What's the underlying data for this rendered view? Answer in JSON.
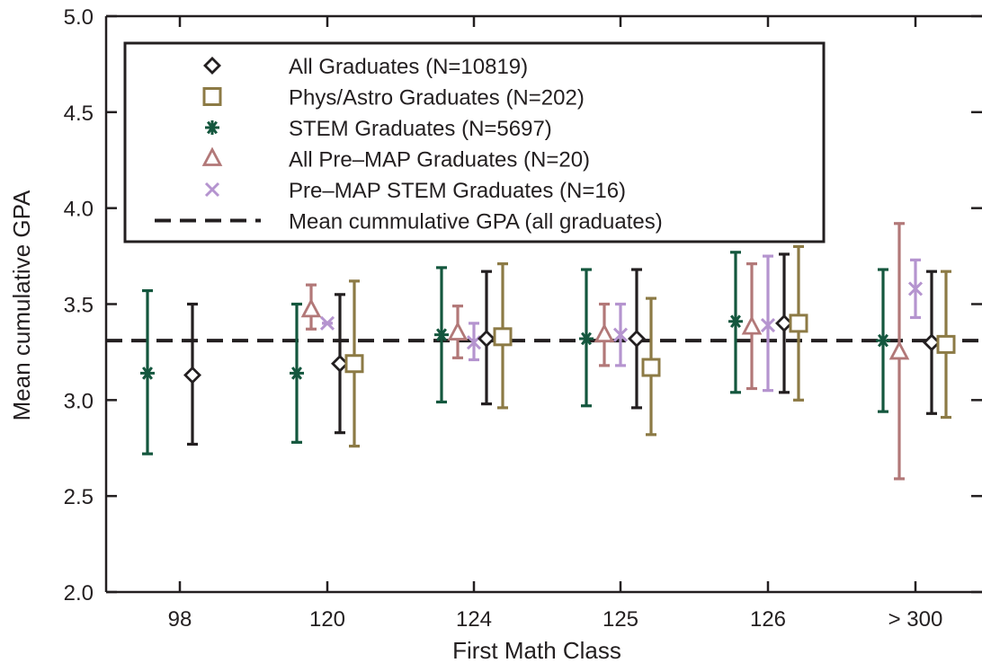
{
  "chart_data": {
    "type": "scatter",
    "title": "",
    "xlabel": "First Math Class",
    "ylabel": "Mean cumulative GPA",
    "categories": [
      "98",
      "120",
      "124",
      "125",
      "126",
      "> 300"
    ],
    "ylim": [
      2.0,
      5.0
    ],
    "yticks": [
      "2.0",
      "2.5",
      "3.0",
      "3.5",
      "4.0",
      "4.5",
      "5.0"
    ],
    "grid": false,
    "legend_position": "top-left",
    "reference_line": {
      "label": "Mean cummulative GPA (all graduates)",
      "value": 3.31,
      "style": "dashed",
      "color": "#231f20"
    },
    "series": [
      {
        "name": "All Graduates (N=10819)",
        "marker": "diamond",
        "color": "#231f20",
        "values": [
          3.13,
          3.19,
          3.32,
          3.32,
          3.4,
          3.3
        ],
        "lower": [
          2.77,
          2.83,
          2.98,
          2.96,
          3.04,
          2.93
        ],
        "upper": [
          3.5,
          3.55,
          3.67,
          3.68,
          3.76,
          3.67
        ]
      },
      {
        "name": "Phys/Astro Graduates (N=202)",
        "marker": "square",
        "color": "#8c7a45",
        "values": [
          null,
          3.19,
          3.33,
          3.17,
          3.4,
          3.29
        ],
        "lower": [
          null,
          2.76,
          2.96,
          2.82,
          3.0,
          2.91
        ],
        "upper": [
          null,
          3.62,
          3.71,
          3.53,
          3.8,
          3.67
        ]
      },
      {
        "name": "STEM Graduates (N=5697)",
        "marker": "asterisk",
        "color": "#14573e",
        "values": [
          3.14,
          3.14,
          3.34,
          3.32,
          3.41,
          3.31
        ],
        "lower": [
          2.72,
          2.78,
          2.99,
          2.97,
          3.04,
          2.94
        ],
        "upper": [
          3.57,
          3.5,
          3.69,
          3.68,
          3.77,
          3.68
        ]
      },
      {
        "name": "All Pre–MAP Graduates (N=20)",
        "marker": "triangle",
        "color": "#b27878",
        "values": [
          null,
          3.47,
          3.35,
          3.34,
          3.38,
          3.25
        ],
        "lower": [
          null,
          3.37,
          3.22,
          3.18,
          3.06,
          2.59
        ],
        "upper": [
          null,
          3.6,
          3.49,
          3.5,
          3.71,
          3.92
        ]
      },
      {
        "name": "Pre–MAP STEM Graduates (N=16)",
        "marker": "x",
        "color": "#b594cf",
        "values": [
          null,
          3.4,
          3.3,
          3.34,
          3.39,
          3.58
        ],
        "lower": [
          null,
          3.4,
          3.21,
          3.18,
          3.05,
          3.43
        ],
        "upper": [
          null,
          3.4,
          3.4,
          3.5,
          3.75,
          3.73
        ]
      }
    ]
  }
}
